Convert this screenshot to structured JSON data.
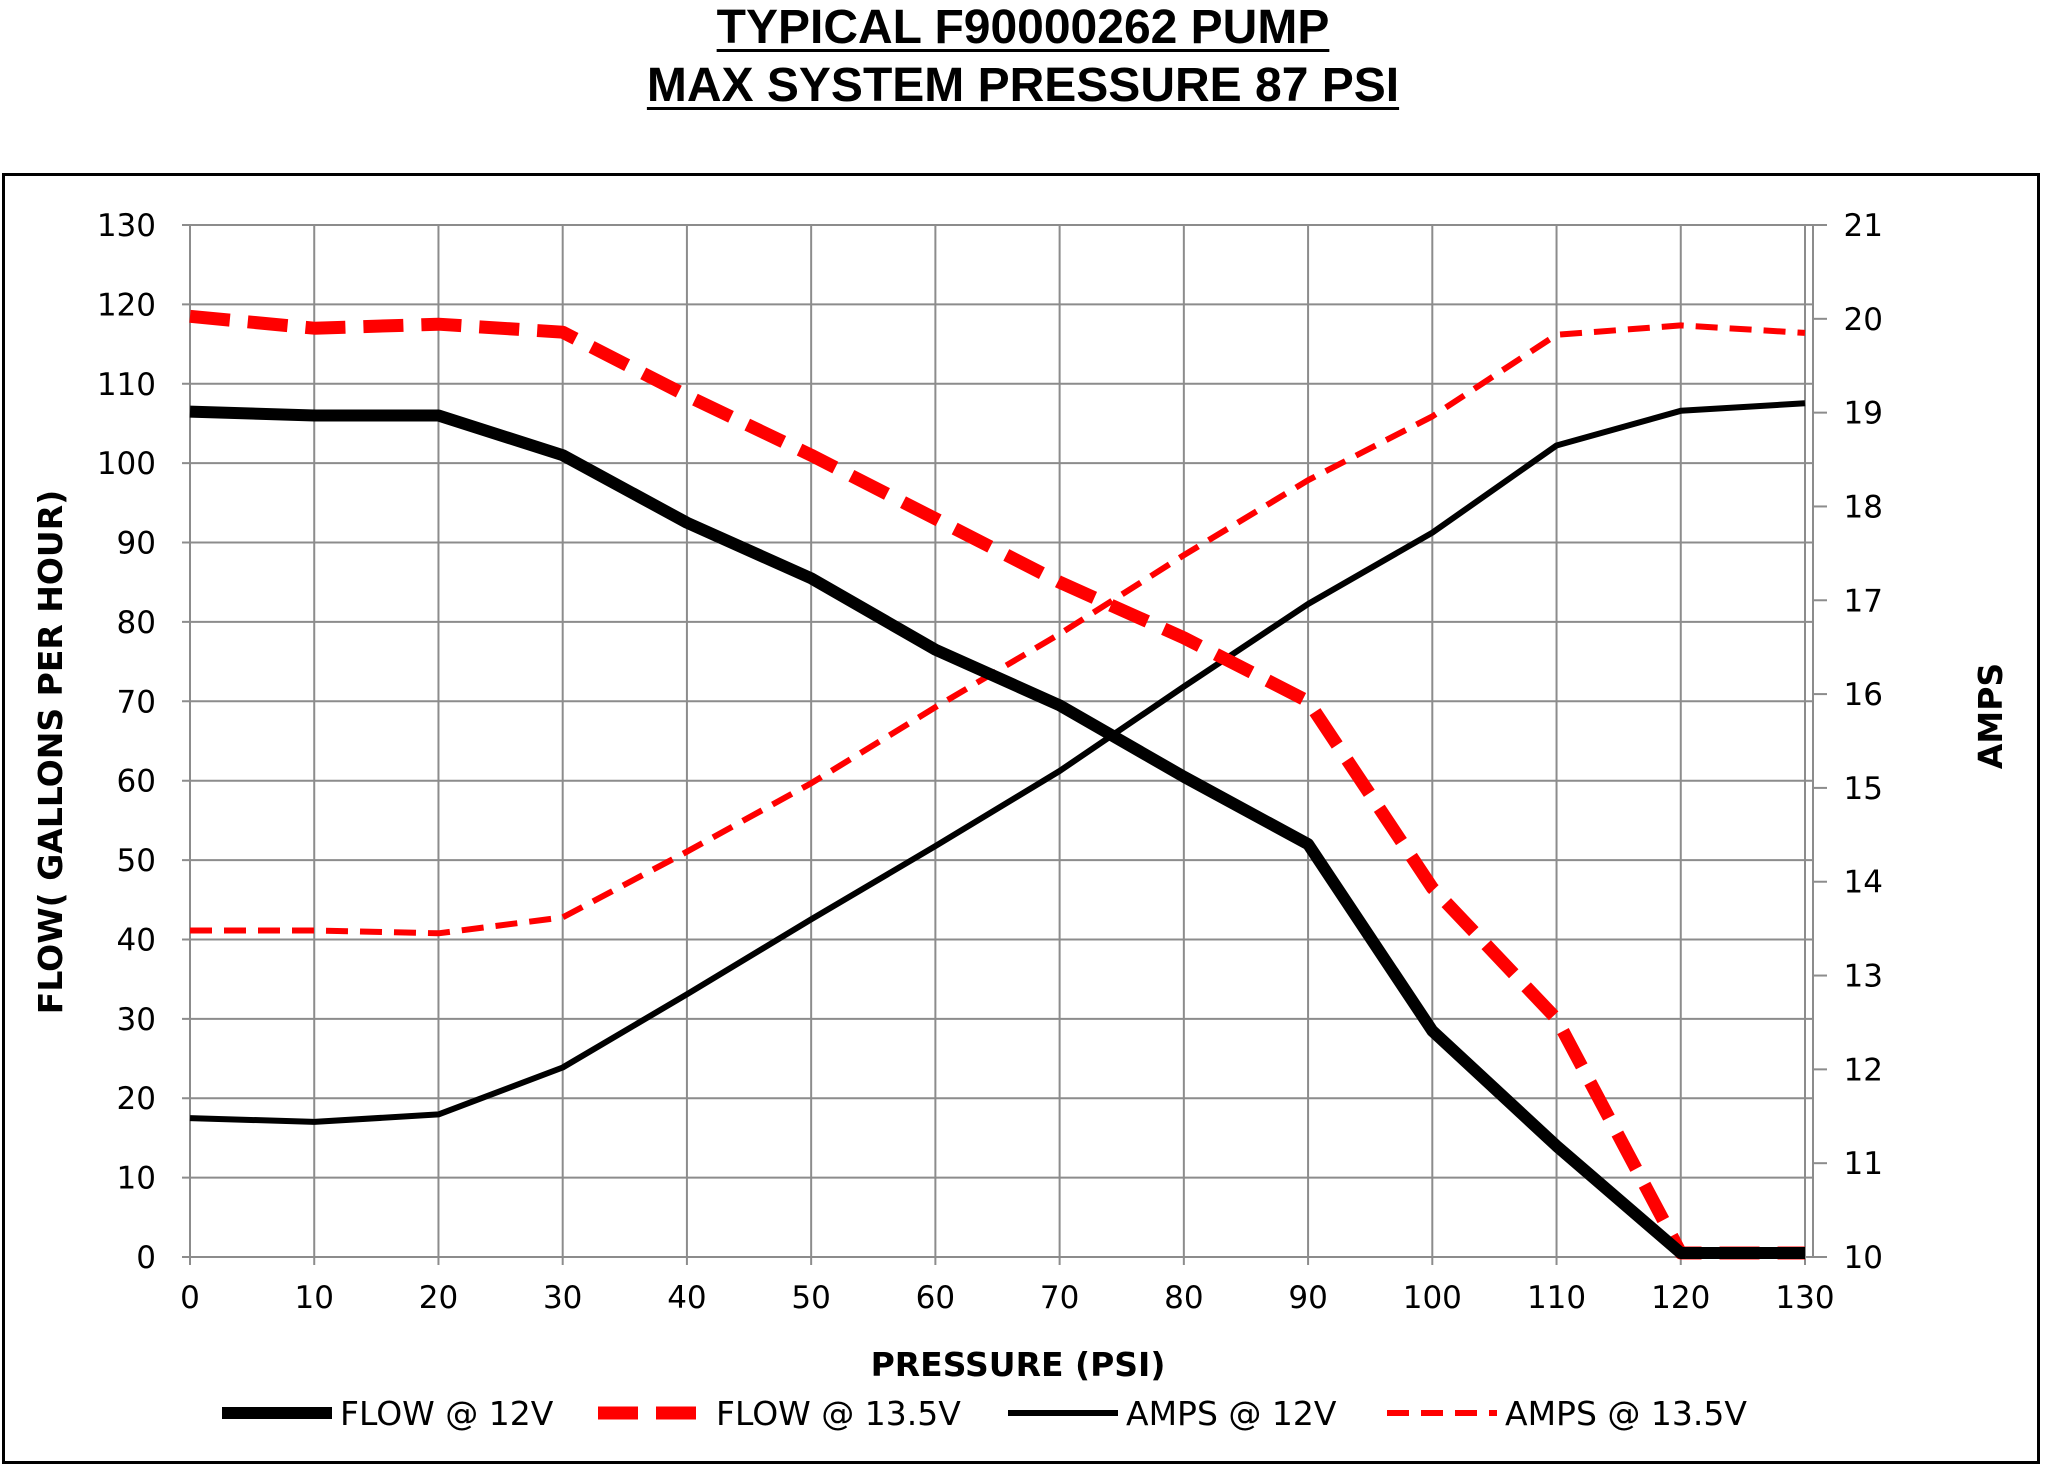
{
  "chart_data": {
    "type": "line",
    "title": "TYPICAL F90000262 PUMP",
    "subtitle": "MAX SYSTEM PRESSURE 87 PSI",
    "xlabel": "PRESSURE (PSI)",
    "ylabel": "FLOW( GALLONS PER HOUR)",
    "y2label": "AMPS",
    "xlim": [
      0,
      130
    ],
    "ylim": [
      0,
      130
    ],
    "y2lim": [
      10,
      21
    ],
    "x_ticks": [
      "0",
      "10",
      "20",
      "30",
      "40",
      "50",
      "60",
      "70",
      "80",
      "90",
      "100",
      "110",
      "120",
      "130"
    ],
    "y_ticks": [
      "0",
      "10",
      "20",
      "30",
      "40",
      "50",
      "60",
      "70",
      "80",
      "90",
      "100",
      "110",
      "120",
      "130"
    ],
    "y2_ticks": [
      "10",
      "11",
      "12",
      "13",
      "14",
      "15",
      "16",
      "17",
      "18",
      "19",
      "20",
      "21"
    ],
    "grid": true,
    "legend_position": "bottom",
    "x": [
      0,
      10,
      20,
      30,
      40,
      50,
      60,
      70,
      80,
      90,
      100,
      110,
      120,
      130
    ],
    "series": [
      {
        "name": "FLOW @ 12V",
        "axis": "left",
        "color": "#000000",
        "style": "solid-thick",
        "values": [
          106.5,
          106,
          106,
          101,
          92.5,
          85.5,
          76.5,
          69.5,
          60.5,
          52,
          28.5,
          14,
          0.5,
          0.5
        ]
      },
      {
        "name": "FLOW @ 13.5V",
        "axis": "left",
        "color": "#ff0000",
        "style": "dashed-thick",
        "values": [
          118.5,
          117,
          117.5,
          116.5,
          108.5,
          101,
          93,
          85,
          78,
          70,
          46.5,
          30,
          0.5,
          0.5
        ]
      },
      {
        "name": "AMPS @ 12V",
        "axis": "right",
        "color": "#000000",
        "style": "solid",
        "values": [
          11.48,
          11.44,
          11.52,
          12.02,
          12.8,
          13.6,
          14.38,
          15.18,
          16.08,
          16.96,
          17.72,
          18.65,
          19.02,
          19.1
        ]
      },
      {
        "name": "AMPS @ 13.5V",
        "axis": "right",
        "color": "#ff0000",
        "style": "dashed",
        "values": [
          13.48,
          13.48,
          13.45,
          13.62,
          14.32,
          15.05,
          15.86,
          16.64,
          17.48,
          18.28,
          18.96,
          19.83,
          19.93,
          19.85
        ]
      }
    ]
  }
}
